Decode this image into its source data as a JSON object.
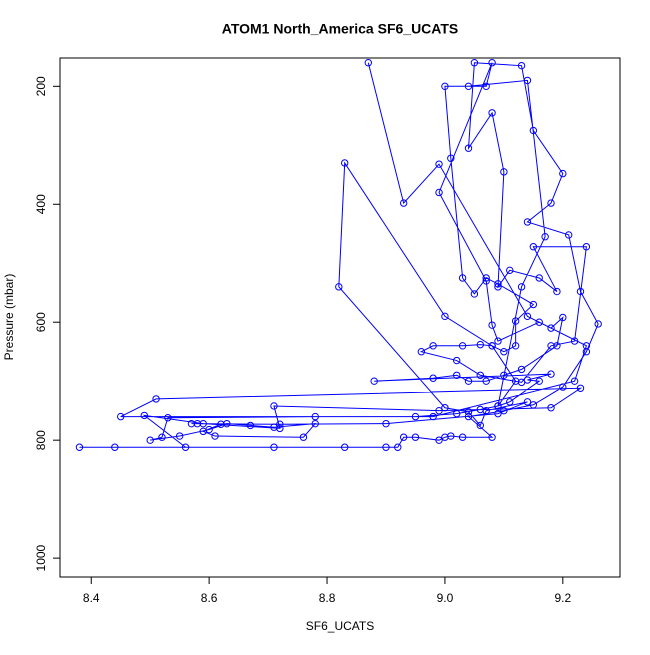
{
  "chart_data": {
    "type": "scatter",
    "title": "ATOM1 North_America SF6_UCATS",
    "xlabel": "SF6_UCATS",
    "ylabel": "Pressure (mbar)",
    "color": "#0000ff",
    "xlim": [
      8.347,
      9.297
    ],
    "ylim": [
      1032,
      152
    ],
    "xticks": [
      8.4,
      8.6,
      8.8,
      {
        "value": 9,
        "label": "9.0"
      },
      9.2
    ],
    "yticks": [
      200,
      400,
      600,
      800,
      1000
    ],
    "x": [
      8.87,
      8.93,
      8.99,
      9.14,
      9.24,
      9.22,
      8.98,
      8.45,
      8.51,
      9.23,
      9.18,
      8.99,
      8.71,
      8.72,
      8.59,
      8.49,
      8.56,
      8.38,
      8.44,
      8.71,
      8.83,
      8.9,
      8.92,
      8.93,
      8.95,
      8.99,
      9.0,
      9.01,
      9.03,
      9.08,
      9.04,
      9.1,
      9.15,
      9.2,
      9.24,
      9.26,
      9.23,
      9.21,
      9.14,
      9.18,
      9.2,
      9.15,
      9.13,
      9.05,
      9.04,
      9.08,
      9.1,
      9.09,
      9.11,
      9.16,
      9.19,
      9.15,
      9.24,
      9.22,
      9.18,
      9.13,
      9.06,
      9.02,
      8.96,
      8.98,
      9.03,
      9.06,
      9.08,
      9.1,
      9.12,
      9.12,
      9.15,
      9.09,
      9.07,
      9.05,
      9.03,
      9.01,
      9.0,
      9.07,
      9.08,
      8.99,
      9.07,
      9.08,
      9.09,
      9.16,
      9.18,
      9.2,
      9.19,
      9.13,
      9.1,
      9.07,
      9.04,
      9.02,
      8.98,
      8.88,
      9.18,
      9.14,
      9.16,
      9.11,
      9.09,
      9.06,
      9.02,
      8.95,
      8.78,
      8.53,
      8.52,
      8.5,
      8.55,
      8.6,
      8.63,
      8.67,
      8.71,
      8.78,
      8.76,
      8.61,
      8.59,
      8.62,
      8.58,
      8.57,
      8.72,
      8.9,
      9.09,
      9.14,
      9.07,
      9.06,
      9.04,
      9.0,
      8.82,
      8.83,
      9.0,
      9.08,
      9.12,
      9.09,
      9.13,
      9.17,
      9.14,
      9.04
    ],
    "y": [
      160,
      398,
      332,
      590,
      640,
      700,
      760,
      760,
      730,
      712,
      745,
      750,
      742,
      780,
      772,
      758,
      812,
      812,
      812,
      812,
      812,
      812,
      812,
      795,
      795,
      800,
      795,
      793,
      795,
      795,
      760,
      750,
      740,
      710,
      650,
      603,
      548,
      452,
      430,
      398,
      348,
      275,
      165,
      160,
      305,
      245,
      345,
      540,
      512,
      525,
      548,
      472,
      472,
      632,
      640,
      702,
      690,
      665,
      650,
      640,
      640,
      638,
      640,
      650,
      640,
      598,
      570,
      535,
      525,
      552,
      525,
      322,
      200,
      200,
      160,
      380,
      530,
      605,
      632,
      600,
      610,
      592,
      640,
      680,
      690,
      700,
      700,
      690,
      695,
      700,
      688,
      698,
      700,
      735,
      742,
      748,
      755,
      760,
      760,
      762,
      795,
      800,
      793,
      782,
      772,
      775,
      778,
      772,
      795,
      793,
      785,
      773,
      772,
      772,
      773,
      772,
      755,
      735,
      750,
      775,
      752,
      745,
      540,
      330,
      590,
      640,
      700,
      742,
      540,
      455,
      190,
      200
    ]
  }
}
